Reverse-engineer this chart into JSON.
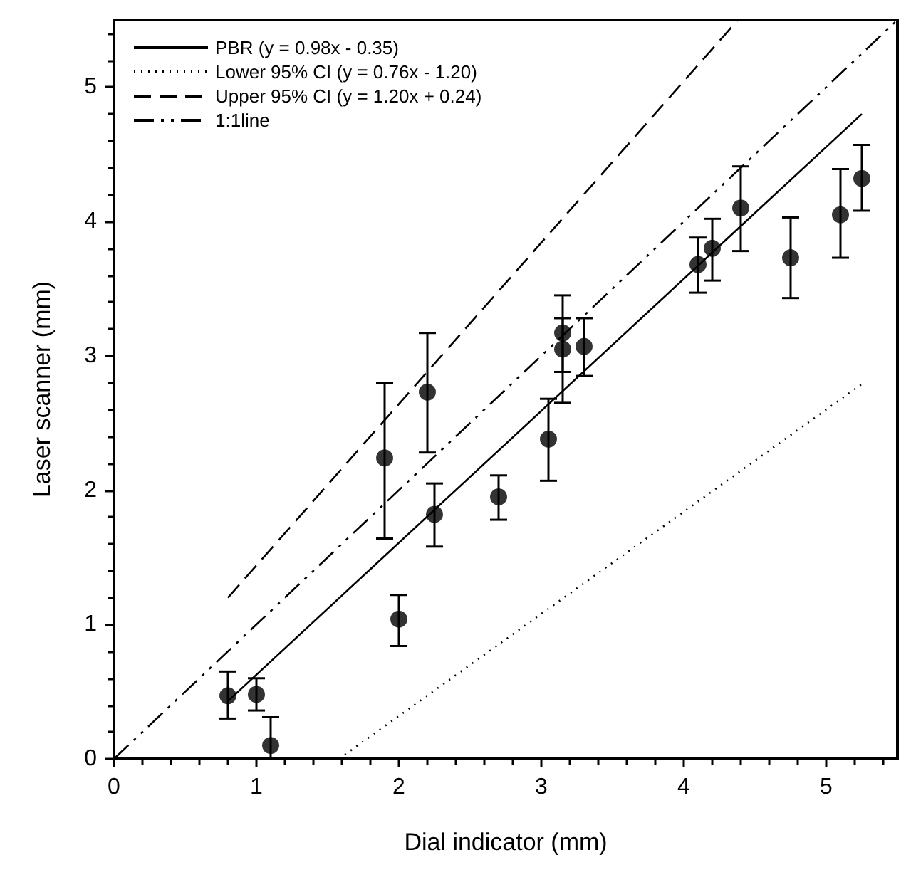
{
  "chart_data": {
    "type": "scatter",
    "xlabel": "Dial indicator (mm)",
    "ylabel": "Laser scanner (mm)",
    "xlim": [
      0,
      5.5
    ],
    "ylim": [
      0,
      5.5
    ],
    "xticks": [
      0,
      1,
      2,
      3,
      4,
      5
    ],
    "yticks": [
      0,
      1,
      2,
      3,
      4,
      5
    ],
    "grid": false,
    "legend": "top left",
    "series": [
      {
        "color": "#000000",
        "marker": "circle",
        "x": [
          0.8,
          1.0,
          1.1,
          1.9,
          2.0,
          2.2,
          2.25,
          2.7,
          3.05,
          3.15,
          3.15,
          3.3,
          4.1,
          4.2,
          4.4,
          4.75,
          5.1,
          5.25
        ],
        "values": [
          0.47,
          0.48,
          0.1,
          2.24,
          1.04,
          2.73,
          1.82,
          1.95,
          2.38,
          3.17,
          3.05,
          3.07,
          3.68,
          3.8,
          4.1,
          3.73,
          4.05,
          4.32
        ],
        "errors": [
          [
            0.3,
            0.65
          ],
          [
            0.36,
            0.6
          ],
          [
            0,
            0.31
          ],
          [
            1.64,
            2.8
          ],
          [
            0.84,
            1.22
          ],
          [
            2.28,
            3.17
          ],
          [
            1.58,
            2.05
          ],
          [
            1.78,
            2.11
          ],
          [
            2.07,
            2.68
          ],
          [
            2.88,
            3.45
          ],
          [
            2.65,
            3.28
          ],
          [
            2.85,
            3.28
          ],
          [
            3.47,
            3.88
          ],
          [
            3.56,
            4.02
          ],
          [
            3.78,
            4.41
          ],
          [
            3.43,
            4.03
          ],
          [
            3.73,
            4.39
          ],
          [
            4.08,
            4.57
          ]
        ]
      },
      {
        "type": "line",
        "name": "PBR (y = 0.98x - 0.35)",
        "color": "#000000",
        "marker": "none",
        "line_style": "solid",
        "x": [
          0.8,
          5.25
        ],
        "values": [
          0.43,
          4.8
        ]
      },
      {
        "type": "line",
        "name": "Lower 95% CI (y = 0.76x - 1.20)",
        "color": "#000000",
        "marker": "none",
        "line_style": "dotted",
        "x": [
          1.58,
          5.25
        ],
        "values": [
          0,
          2.79
        ]
      },
      {
        "type": "line",
        "name": "Upper 95% CI (y = 1.20x + 0.24)",
        "color": "#000000",
        "marker": "none",
        "line_style": "dashed",
        "x": [
          0.8,
          4.38
        ],
        "values": [
          1.2,
          5.5
        ]
      },
      {
        "type": "line",
        "name": "1:1line",
        "color": "#000000",
        "marker": "none",
        "line_style": "dashdot",
        "x": [
          0,
          5.5
        ],
        "values": [
          0,
          5.5
        ]
      }
    ]
  }
}
